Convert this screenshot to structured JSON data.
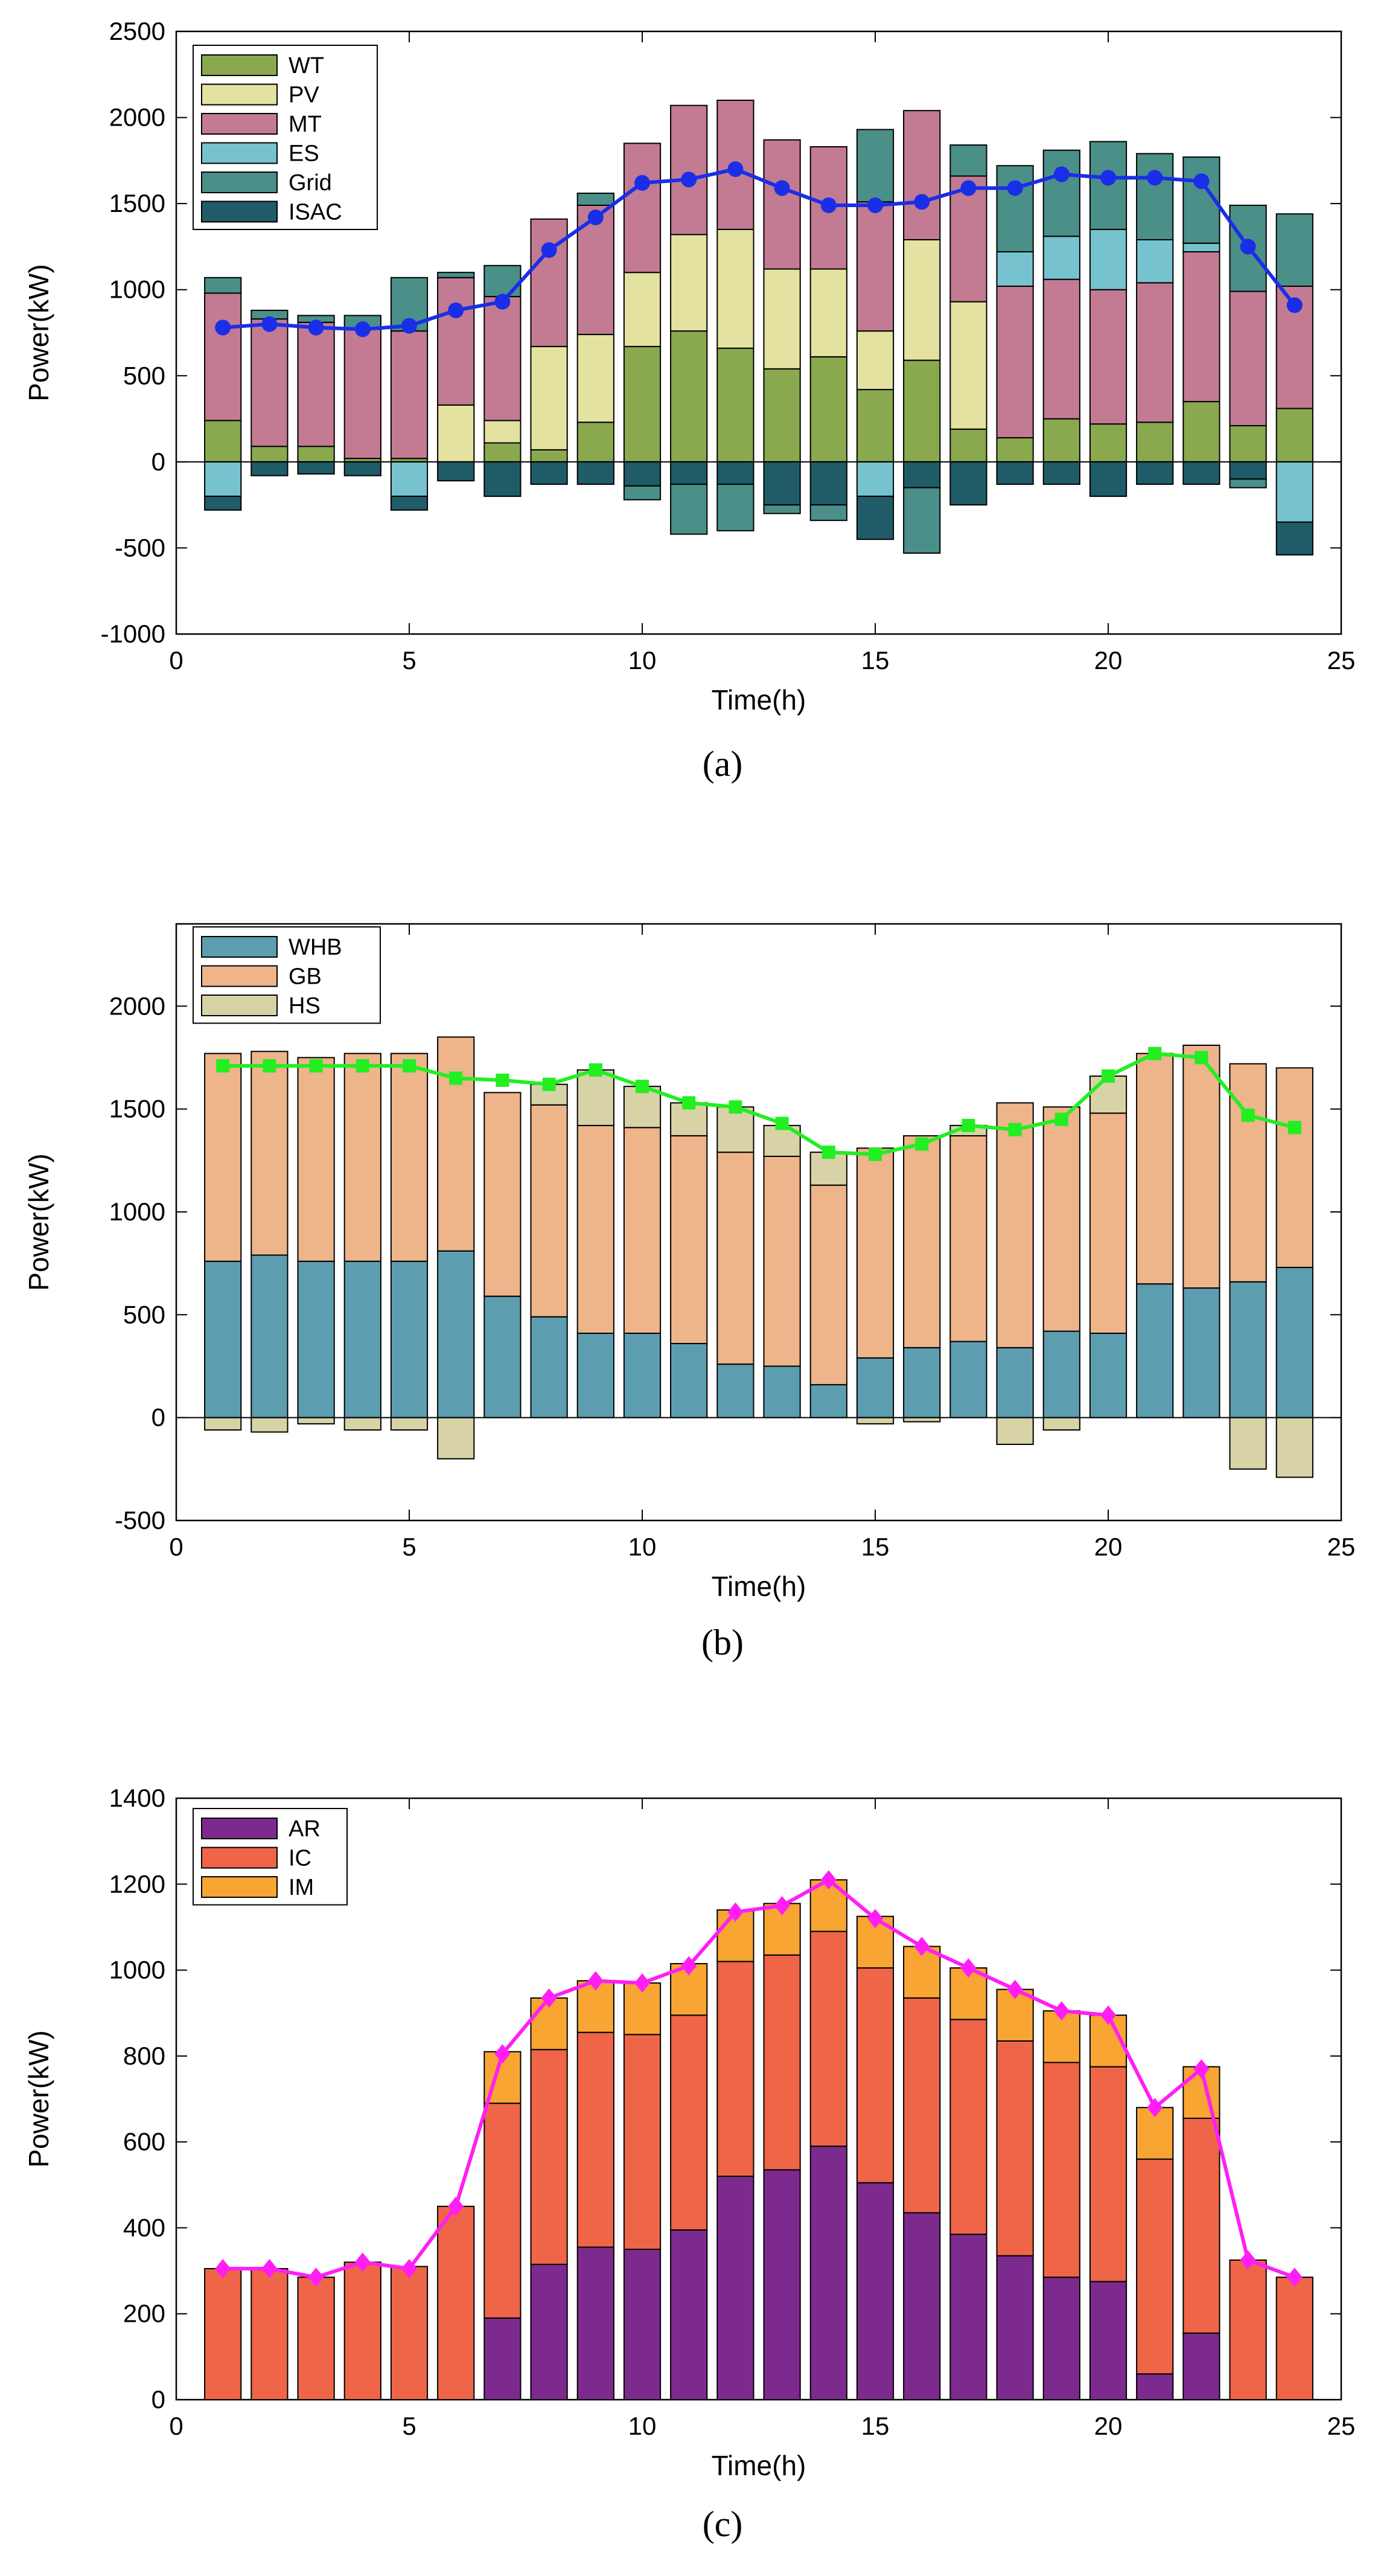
{
  "chart_data": [
    {
      "type": "bar",
      "caption": "(a)",
      "xlabel": "Time(h)",
      "ylabel": "Power(kW)",
      "xlim": [
        0,
        25
      ],
      "ylim": [
        -1000,
        2500
      ],
      "xticks": [
        0,
        5,
        10,
        15,
        20,
        25
      ],
      "yticks": [
        -1000,
        -500,
        0,
        500,
        1000,
        1500,
        2000,
        2500
      ],
      "x": [
        1,
        2,
        3,
        4,
        5,
        6,
        7,
        8,
        9,
        10,
        11,
        12,
        13,
        14,
        15,
        16,
        17,
        18,
        19,
        20,
        21,
        22,
        23,
        24
      ],
      "legend_position": "top-left",
      "series": [
        {
          "name": "WT",
          "color": "#8aa84e",
          "values": [
            240,
            90,
            90,
            20,
            20,
            0,
            110,
            70,
            230,
            670,
            760,
            660,
            540,
            610,
            420,
            590,
            190,
            140,
            250,
            220,
            230,
            350,
            210,
            310
          ]
        },
        {
          "name": "PV",
          "color": "#e3e2a0",
          "values": [
            0,
            0,
            0,
            0,
            0,
            330,
            130,
            600,
            510,
            430,
            560,
            690,
            580,
            510,
            340,
            700,
            740,
            0,
            0,
            0,
            0,
            0,
            0,
            0
          ]
        },
        {
          "name": "MT",
          "color": "#c27b92",
          "values": [
            740,
            740,
            720,
            750,
            740,
            740,
            720,
            740,
            750,
            750,
            750,
            750,
            750,
            710,
            750,
            750,
            730,
            880,
            810,
            780,
            810,
            870,
            780,
            710
          ]
        },
        {
          "name": "ES",
          "color": "#77c2cf",
          "values": [
            -200,
            0,
            0,
            0,
            -200,
            0,
            0,
            0,
            0,
            0,
            0,
            0,
            0,
            0,
            -200,
            0,
            0,
            200,
            250,
            350,
            250,
            50,
            0,
            -350
          ]
        },
        {
          "name": "Grid",
          "color": "#4b8f89",
          "values": [
            90,
            50,
            40,
            80,
            310,
            30,
            180,
            0,
            70,
            0,
            0,
            0,
            0,
            0,
            420,
            0,
            180,
            500,
            500,
            510,
            500,
            500,
            500,
            420
          ]
        },
        {
          "name": "ISAC",
          "color": "#1f5c68",
          "values": [
            -80,
            -80,
            -70,
            -80,
            -80,
            -110,
            -200,
            -130,
            -130,
            -140,
            -130,
            -130,
            -250,
            -250,
            -250,
            -150,
            -250,
            -130,
            -130,
            -200,
            -130,
            -130,
            -100,
            -190
          ]
        }
      ],
      "extra_negative": [
        {
          "name": "Grid",
          "values": [
            0,
            0,
            0,
            0,
            0,
            0,
            0,
            0,
            0,
            -80,
            -290,
            -270,
            -50,
            -90,
            0,
            -380,
            0,
            0,
            0,
            0,
            0,
            0,
            -50,
            0
          ]
        }
      ],
      "line": {
        "color": "#1a2ee8",
        "marker": "circle",
        "values": [
          780,
          800,
          780,
          770,
          790,
          880,
          930,
          1230,
          1420,
          1620,
          1640,
          1700,
          1590,
          1490,
          1490,
          1510,
          1590,
          1590,
          1670,
          1650,
          1650,
          1630,
          1250,
          910
        ]
      },
      "legend": [
        "WT",
        "PV",
        "MT",
        "ES",
        "Grid",
        "ISAC"
      ]
    },
    {
      "type": "bar",
      "caption": "(b)",
      "xlabel": "Time(h)",
      "ylabel": "Power(kW)",
      "xlim": [
        0,
        25
      ],
      "ylim": [
        -500,
        2400
      ],
      "xticks": [
        0,
        5,
        10,
        15,
        20,
        25
      ],
      "yticks": [
        -500,
        0,
        500,
        1000,
        1500,
        2000
      ],
      "x": [
        1,
        2,
        3,
        4,
        5,
        6,
        7,
        8,
        9,
        10,
        11,
        12,
        13,
        14,
        15,
        16,
        17,
        18,
        19,
        20,
        21,
        22,
        23,
        24
      ],
      "legend_position": "top-left",
      "series": [
        {
          "name": "WHB",
          "color": "#5c9eb0",
          "values": [
            760,
            790,
            760,
            760,
            760,
            810,
            590,
            490,
            410,
            410,
            360,
            260,
            250,
            160,
            290,
            340,
            370,
            340,
            420,
            410,
            650,
            630,
            660,
            730
          ]
        },
        {
          "name": "GB",
          "color": "#eeb48a",
          "values": [
            1010,
            990,
            990,
            1010,
            1010,
            1040,
            990,
            1030,
            1010,
            1000,
            1010,
            1030,
            1020,
            970,
            1020,
            1030,
            1000,
            1190,
            1090,
            1070,
            1120,
            1180,
            1060,
            970
          ]
        },
        {
          "name": "HS",
          "color": "#d8d3a6",
          "values": [
            -60,
            -70,
            -30,
            -60,
            -60,
            -200,
            0,
            100,
            270,
            200,
            160,
            220,
            150,
            160,
            -30,
            -20,
            50,
            -130,
            -60,
            180,
            0,
            0,
            -250,
            -290
          ]
        }
      ],
      "line": {
        "color": "#22ee22",
        "marker": "square",
        "values": [
          1710,
          1710,
          1710,
          1710,
          1710,
          1650,
          1640,
          1620,
          1690,
          1610,
          1530,
          1510,
          1430,
          1290,
          1280,
          1330,
          1420,
          1400,
          1450,
          1660,
          1770,
          1750,
          1470,
          1410
        ]
      },
      "legend": [
        "WHB",
        "GB",
        "HS"
      ]
    },
    {
      "type": "bar",
      "caption": "(c)",
      "xlabel": "Time(h)",
      "ylabel": "Power(kW)",
      "xlim": [
        0,
        25
      ],
      "ylim": [
        0,
        1400
      ],
      "xticks": [
        0,
        5,
        10,
        15,
        20,
        25
      ],
      "yticks": [
        0,
        200,
        400,
        600,
        800,
        1000,
        1200,
        1400
      ],
      "x": [
        1,
        2,
        3,
        4,
        5,
        6,
        7,
        8,
        9,
        10,
        11,
        12,
        13,
        14,
        15,
        16,
        17,
        18,
        19,
        20,
        21,
        22,
        23,
        24
      ],
      "legend_position": "top-left",
      "series": [
        {
          "name": "AR",
          "color": "#7d2a8e",
          "values": [
            0,
            0,
            0,
            0,
            0,
            0,
            190,
            315,
            355,
            350,
            395,
            520,
            535,
            590,
            505,
            435,
            385,
            335,
            285,
            275,
            60,
            155,
            0,
            0
          ]
        },
        {
          "name": "IC",
          "color": "#ee6548",
          "values": [
            305,
            305,
            285,
            320,
            310,
            450,
            500,
            500,
            500,
            500,
            500,
            500,
            500,
            500,
            500,
            500,
            500,
            500,
            500,
            500,
            500,
            500,
            325,
            285
          ]
        },
        {
          "name": "IM",
          "color": "#f8a534",
          "values": [
            0,
            0,
            0,
            0,
            0,
            0,
            120,
            120,
            120,
            120,
            120,
            120,
            120,
            120,
            120,
            120,
            120,
            120,
            120,
            120,
            120,
            120,
            0,
            0
          ]
        }
      ],
      "line": {
        "color": "#ff1ef5",
        "marker": "diamond",
        "values": [
          305,
          305,
          285,
          320,
          305,
          450,
          805,
          935,
          975,
          970,
          1010,
          1135,
          1150,
          1210,
          1120,
          1055,
          1005,
          955,
          905,
          895,
          680,
          770,
          325,
          285
        ]
      },
      "legend": [
        "AR",
        "IC",
        "IM"
      ]
    }
  ]
}
